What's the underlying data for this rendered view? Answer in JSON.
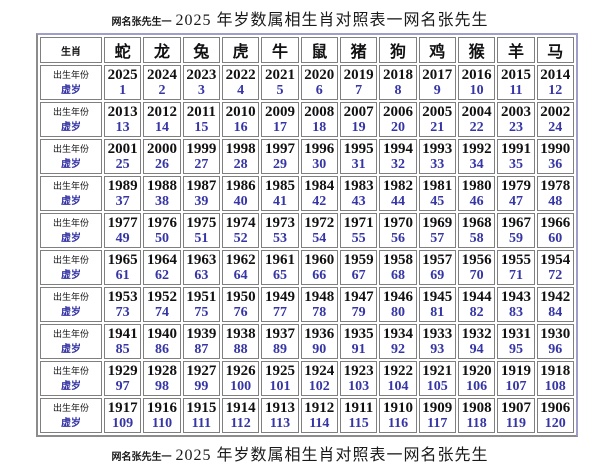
{
  "page": {
    "title": {
      "prefix": "网名张先生一",
      "main": "2025 年岁数属相生肖对照表一网名张先生"
    },
    "footer": {
      "prefix": "网名张先生一",
      "main": "2025 年岁数属相生肖对照表一网名张先生"
    }
  },
  "table": {
    "corner_label": "生肖",
    "year_row_label": "出生年份",
    "age_row_label": "虚岁",
    "zodiac": [
      "蛇",
      "龙",
      "兔",
      "虎",
      "牛",
      "鼠",
      "猪",
      "狗",
      "鸡",
      "猴",
      "羊",
      "马"
    ],
    "groups": [
      {
        "years": [
          2025,
          2024,
          2023,
          2022,
          2021,
          2020,
          2019,
          2018,
          2017,
          2016,
          2015,
          2014
        ],
        "ages": [
          1,
          2,
          3,
          4,
          5,
          6,
          7,
          8,
          9,
          10,
          11,
          12
        ]
      },
      {
        "years": [
          2013,
          2012,
          2011,
          2010,
          2009,
          2008,
          2007,
          2006,
          2005,
          2004,
          2003,
          2002
        ],
        "ages": [
          13,
          14,
          15,
          16,
          17,
          18,
          19,
          20,
          21,
          22,
          23,
          24
        ]
      },
      {
        "years": [
          2001,
          2000,
          1999,
          1998,
          1997,
          1996,
          1995,
          1994,
          1993,
          1992,
          1991,
          1990
        ],
        "ages": [
          25,
          26,
          27,
          28,
          29,
          30,
          31,
          32,
          33,
          34,
          35,
          36
        ]
      },
      {
        "years": [
          1989,
          1988,
          1987,
          1986,
          1985,
          1984,
          1983,
          1982,
          1981,
          1980,
          1979,
          1978
        ],
        "ages": [
          37,
          38,
          39,
          40,
          41,
          42,
          43,
          44,
          45,
          46,
          47,
          48
        ]
      },
      {
        "years": [
          1977,
          1976,
          1975,
          1974,
          1973,
          1972,
          1971,
          1970,
          1969,
          1968,
          1967,
          1966
        ],
        "ages": [
          49,
          50,
          51,
          52,
          53,
          54,
          55,
          56,
          57,
          58,
          59,
          60
        ]
      },
      {
        "years": [
          1965,
          1964,
          1963,
          1962,
          1961,
          1960,
          1959,
          1958,
          1957,
          1956,
          1955,
          1954
        ],
        "ages": [
          61,
          62,
          63,
          64,
          65,
          66,
          67,
          68,
          69,
          70,
          71,
          72
        ]
      },
      {
        "years": [
          1953,
          1952,
          1951,
          1950,
          1949,
          1948,
          1947,
          1946,
          1945,
          1944,
          1943,
          1942
        ],
        "ages": [
          73,
          74,
          75,
          76,
          77,
          78,
          79,
          80,
          81,
          82,
          83,
          84
        ]
      },
      {
        "years": [
          1941,
          1940,
          1939,
          1938,
          1937,
          1936,
          1935,
          1934,
          1933,
          1932,
          1931,
          1930
        ],
        "ages": [
          85,
          86,
          87,
          88,
          89,
          90,
          91,
          92,
          93,
          94,
          95,
          96
        ]
      },
      {
        "years": [
          1929,
          1928,
          1927,
          1926,
          1925,
          1924,
          1923,
          1922,
          1921,
          1920,
          1919,
          1918
        ],
        "ages": [
          97,
          98,
          99,
          100,
          101,
          102,
          103,
          104,
          105,
          106,
          107,
          108
        ]
      },
      {
        "years": [
          1917,
          1916,
          1915,
          1914,
          1913,
          1912,
          1911,
          1910,
          1909,
          1908,
          1907,
          1906
        ],
        "ages": [
          109,
          110,
          111,
          112,
          113,
          114,
          115,
          116,
          117,
          118,
          119,
          120
        ]
      }
    ]
  },
  "colors": {
    "age_text": "#3535a5",
    "year_text": "#111111",
    "cell_border": "#7f7f7f",
    "outer_border_dark": "#8c8c8c",
    "outer_border_light": "#9e9ec9",
    "background": "#ffffff"
  }
}
